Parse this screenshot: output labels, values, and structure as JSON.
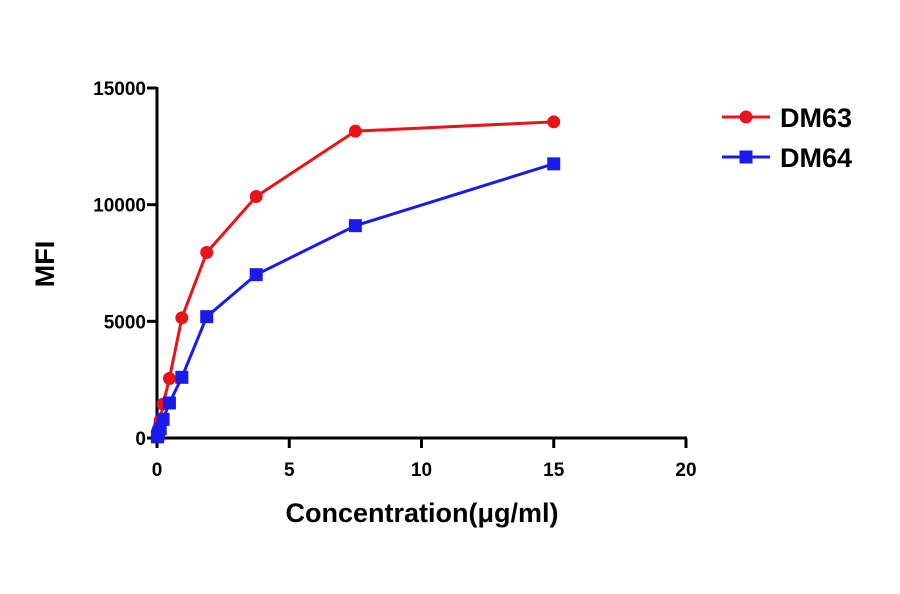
{
  "chart_data": {
    "type": "line",
    "title": "",
    "xlabel": "Concentration(μg/ml)",
    "ylabel": "MFI",
    "xlim": [
      0,
      20
    ],
    "ylim": [
      0,
      15000
    ],
    "xticks": [
      0,
      5,
      10,
      15,
      20
    ],
    "yticks": [
      0,
      5000,
      10000,
      15000
    ],
    "xtick_labels": [
      "0",
      "5",
      "10",
      "15",
      "20"
    ],
    "ytick_labels": [
      "0",
      "5000",
      "10000",
      "15000"
    ],
    "grid": false,
    "legend_position": "top-right",
    "series": [
      {
        "name": "DM63",
        "color": "#e8141b",
        "marker": "circle",
        "x": [
          0.015,
          0.03,
          0.06,
          0.12,
          0.23,
          0.47,
          0.94,
          1.88,
          3.75,
          7.5,
          15
        ],
        "y": [
          100,
          200,
          400,
          750,
          1450,
          2550,
          5150,
          7950,
          10350,
          13150,
          13550
        ]
      },
      {
        "name": "DM64",
        "color": "#1a1aeb",
        "marker": "square",
        "x": [
          0.015,
          0.03,
          0.06,
          0.12,
          0.23,
          0.47,
          0.94,
          1.88,
          3.75,
          7.5,
          15
        ],
        "y": [
          50,
          100,
          200,
          400,
          800,
          1500,
          2600,
          5200,
          7000,
          9100,
          11750
        ]
      }
    ]
  }
}
